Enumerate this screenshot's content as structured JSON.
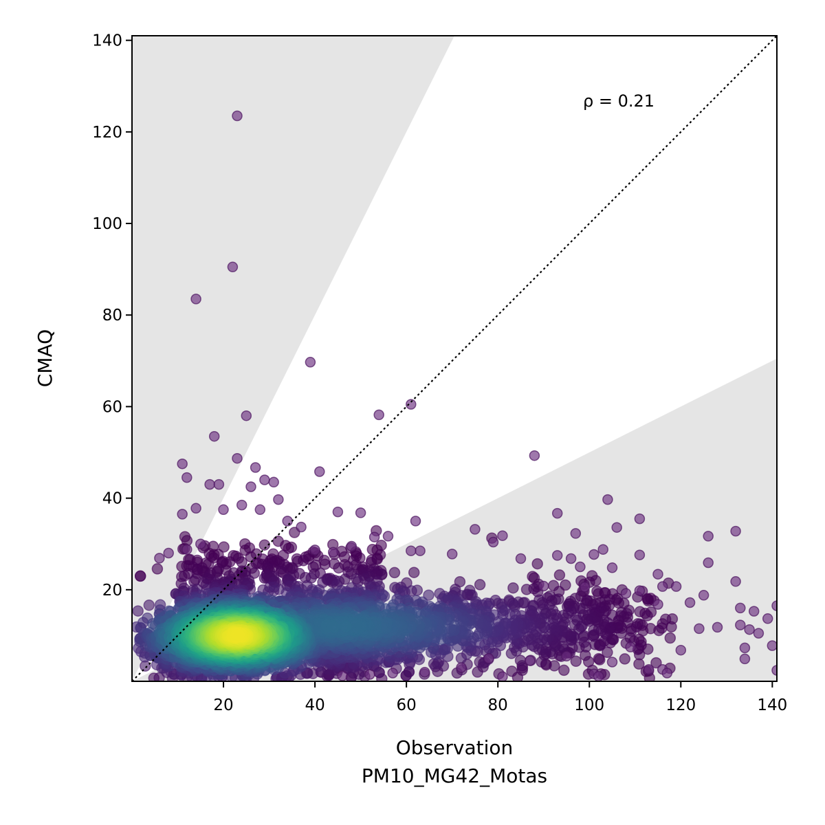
{
  "chart_data": {
    "type": "scatter",
    "xlabel_line1": "Observation",
    "xlabel_line2": "PM10_MG42_Motas",
    "ylabel": "CMAQ",
    "annotation": "ρ = 0.21",
    "xlim": [
      0,
      141
    ],
    "ylim": [
      0,
      141
    ],
    "x_ticks": [
      "20",
      "40",
      "60",
      "80",
      "100",
      "120",
      "140"
    ],
    "y_ticks": [
      "20",
      "40",
      "60",
      "80",
      "100",
      "120",
      "140"
    ],
    "x_tick_values": [
      20,
      40,
      60,
      80,
      100,
      120,
      140
    ],
    "y_tick_values": [
      20,
      40,
      60,
      80,
      100,
      120,
      140
    ],
    "grid": false,
    "legend": "none",
    "reference_line": {
      "slope": 1,
      "style": "dotted",
      "color": "#000000"
    },
    "shaded_regions": [
      {
        "description": "above factor-2 line",
        "lower_slope": 2,
        "color": "#e5e5e5"
      },
      {
        "description": "below factor-0.5 line",
        "upper_slope": 0.5,
        "color": "#e5e5e5"
      }
    ],
    "colormap": "viridis (point density)",
    "outliers": [
      {
        "x": 23,
        "y": 123.5
      },
      {
        "x": 22,
        "y": 90.5
      },
      {
        "x": 14,
        "y": 83.5
      },
      {
        "x": 39,
        "y": 69.7
      },
      {
        "x": 25,
        "y": 58
      },
      {
        "x": 61,
        "y": 60.5
      },
      {
        "x": 54,
        "y": 58.2
      },
      {
        "x": 18,
        "y": 53.5
      },
      {
        "x": 88,
        "y": 49.3
      },
      {
        "x": 11,
        "y": 47.5
      },
      {
        "x": 23,
        "y": 48.7
      },
      {
        "x": 12,
        "y": 44.5
      },
      {
        "x": 41,
        "y": 45.8
      },
      {
        "x": 27,
        "y": 46.7
      },
      {
        "x": 17,
        "y": 43
      },
      {
        "x": 19,
        "y": 43
      },
      {
        "x": 26,
        "y": 42.5
      },
      {
        "x": 29,
        "y": 44
      },
      {
        "x": 31,
        "y": 43.5
      },
      {
        "x": 32,
        "y": 39.7
      },
      {
        "x": 104,
        "y": 39.7
      },
      {
        "x": 111,
        "y": 35.5
      },
      {
        "x": 93,
        "y": 36.7
      },
      {
        "x": 62,
        "y": 35
      },
      {
        "x": 45,
        "y": 37
      },
      {
        "x": 50,
        "y": 36.8
      },
      {
        "x": 11,
        "y": 36.5
      },
      {
        "x": 14,
        "y": 37.8
      },
      {
        "x": 20,
        "y": 37.5
      },
      {
        "x": 24,
        "y": 38.5
      },
      {
        "x": 28,
        "y": 37.5
      },
      {
        "x": 126,
        "y": 31.7
      },
      {
        "x": 132,
        "y": 32.8
      },
      {
        "x": 75,
        "y": 33.2
      },
      {
        "x": 97,
        "y": 32.3
      },
      {
        "x": 106,
        "y": 33.6
      },
      {
        "x": 81,
        "y": 31.8
      },
      {
        "x": 79,
        "y": 30.4
      },
      {
        "x": 103,
        "y": 28.8
      },
      {
        "x": 111,
        "y": 27.6
      },
      {
        "x": 101,
        "y": 27.7
      },
      {
        "x": 93,
        "y": 27.5
      },
      {
        "x": 70,
        "y": 27.8
      },
      {
        "x": 85,
        "y": 26.8
      },
      {
        "x": 126,
        "y": 25.9
      },
      {
        "x": 115,
        "y": 23.4
      },
      {
        "x": 96,
        "y": 26.8
      },
      {
        "x": 98,
        "y": 25
      },
      {
        "x": 105,
        "y": 24.8
      },
      {
        "x": 116,
        "y": 20.7
      },
      {
        "x": 132,
        "y": 21.8
      },
      {
        "x": 90,
        "y": 20.8
      },
      {
        "x": 99,
        "y": 20.6
      },
      {
        "x": 108,
        "y": 19.2
      },
      {
        "x": 111,
        "y": 19.8
      },
      {
        "x": 125,
        "y": 18.8
      },
      {
        "x": 119,
        "y": 20.7
      },
      {
        "x": 115,
        "y": 16.8
      },
      {
        "x": 122,
        "y": 17.2
      },
      {
        "x": 133,
        "y": 16
      },
      {
        "x": 141,
        "y": 16.5
      },
      {
        "x": 136,
        "y": 15.3
      },
      {
        "x": 139,
        "y": 13.7
      },
      {
        "x": 133,
        "y": 12.3
      },
      {
        "x": 128,
        "y": 11.8
      },
      {
        "x": 124,
        "y": 11.5
      },
      {
        "x": 135,
        "y": 11.3
      },
      {
        "x": 137,
        "y": 10.5
      },
      {
        "x": 140,
        "y": 7.8
      },
      {
        "x": 134,
        "y": 7.3
      },
      {
        "x": 134,
        "y": 4.9
      },
      {
        "x": 141,
        "y": 2.4
      },
      {
        "x": 113,
        "y": 2.6
      },
      {
        "x": 116,
        "y": 2.6
      },
      {
        "x": 117,
        "y": 1.8
      },
      {
        "x": 101,
        "y": 1.6
      },
      {
        "x": 102,
        "y": 1.1
      },
      {
        "x": 105,
        "y": 4.2
      },
      {
        "x": 120,
        "y": 6.8
      },
      {
        "x": 109,
        "y": 7.5
      },
      {
        "x": 95,
        "y": 5.5
      },
      {
        "x": 87,
        "y": 4.5
      },
      {
        "x": 78,
        "y": 5
      },
      {
        "x": 72,
        "y": 3
      },
      {
        "x": 81,
        "y": 1
      },
      {
        "x": 64,
        "y": 2
      },
      {
        "x": 57,
        "y": 1.8
      },
      {
        "x": 52,
        "y": 1.5
      },
      {
        "x": 46,
        "y": 1.2
      },
      {
        "x": 53,
        "y": 31.5
      },
      {
        "x": 56,
        "y": 31.7
      },
      {
        "x": 37,
        "y": 33.7
      },
      {
        "x": 34,
        "y": 35
      },
      {
        "x": 40,
        "y": 28.7
      },
      {
        "x": 44,
        "y": 28.2
      },
      {
        "x": 48,
        "y": 29.5
      },
      {
        "x": 63,
        "y": 28.5
      },
      {
        "x": 61,
        "y": 28.5
      },
      {
        "x": 15,
        "y": 30
      },
      {
        "x": 12,
        "y": 28.8
      },
      {
        "x": 8,
        "y": 28
      },
      {
        "x": 6,
        "y": 26.9
      }
    ]
  }
}
